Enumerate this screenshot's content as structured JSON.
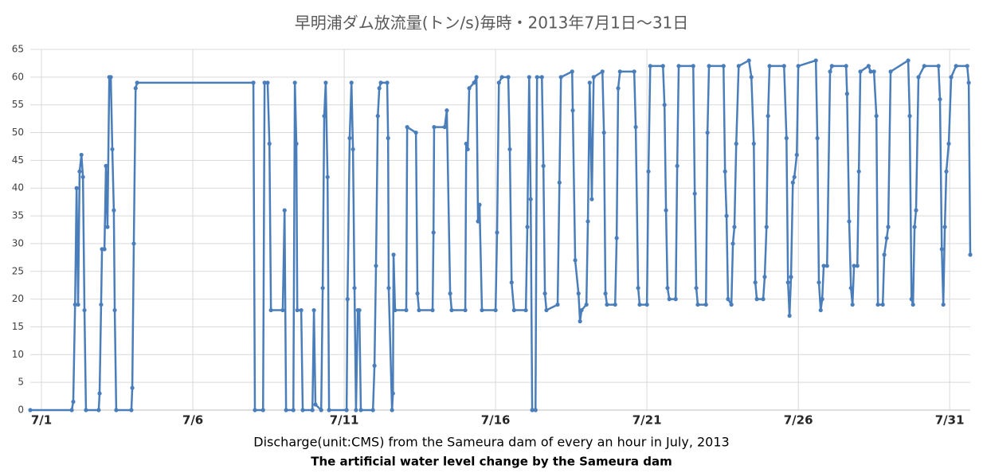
{
  "chart_data": {
    "type": "line",
    "title": "早明浦ダム放流量(トン/s)毎時・2013年7月1日～31日",
    "x_label": "Discharge(unit:CMS) from the Sameura dam of every an hour in July, 2013",
    "caption": "The artificial water level change by the Sameura dam",
    "color": "#4a7ebb",
    "grid": true,
    "markers": true,
    "xlim": [
      0.63,
      31.68
    ],
    "xticks": [
      {
        "value": 1,
        "label": "7/1"
      },
      {
        "value": 6,
        "label": "7/6"
      },
      {
        "value": 11,
        "label": "7/11"
      },
      {
        "value": 16,
        "label": "7/16"
      },
      {
        "value": 21,
        "label": "7/21"
      },
      {
        "value": 26,
        "label": "7/26"
      },
      {
        "value": 31,
        "label": "7/31"
      }
    ],
    "ylim": [
      0,
      65
    ],
    "yticks": [
      0,
      5,
      10,
      15,
      20,
      25,
      30,
      35,
      40,
      45,
      50,
      55,
      60,
      65
    ],
    "x": [
      0.63,
      2.0,
      2.05,
      2.11,
      2.16,
      2.21,
      2.26,
      2.32,
      2.37,
      2.42,
      2.47,
      2.89,
      2.92,
      2.97,
      3.0,
      3.08,
      3.13,
      3.18,
      3.24,
      3.29,
      3.34,
      3.39,
      3.42,
      3.47,
      3.97,
      4.0,
      4.05,
      4.11,
      4.16,
      8.0,
      8.05,
      8.32,
      8.37,
      8.47,
      8.53,
      8.58,
      8.97,
      9.03,
      9.08,
      9.32,
      9.37,
      9.42,
      9.45,
      9.58,
      9.63,
      9.95,
      10.0,
      10.05,
      10.24,
      10.29,
      10.34,
      10.39,
      10.45,
      10.5,
      11.08,
      11.11,
      11.18,
      11.24,
      11.29,
      11.34,
      11.39,
      11.45,
      11.5,
      11.55,
      11.95,
      12.0,
      12.05,
      12.11,
      12.16,
      12.21,
      12.42,
      12.45,
      12.47,
      12.58,
      12.61,
      12.63,
      12.68,
      13.05,
      13.08,
      13.37,
      13.42,
      13.47,
      13.92,
      13.95,
      13.97,
      14.32,
      14.39,
      14.5,
      14.55,
      15.0,
      15.03,
      15.08,
      15.13,
      15.29,
      15.37,
      15.42,
      15.47,
      15.55,
      16.0,
      16.05,
      16.11,
      16.21,
      16.42,
      16.47,
      16.53,
      16.61,
      17.0,
      17.05,
      17.11,
      17.16,
      17.21,
      17.32,
      17.37,
      17.53,
      17.58,
      17.63,
      17.68,
      18.05,
      18.11,
      18.16,
      18.53,
      18.55,
      18.63,
      18.74,
      18.79,
      18.84,
      19.0,
      19.05,
      19.11,
      19.18,
      19.24,
      19.53,
      19.58,
      19.63,
      19.68,
      19.95,
      20.0,
      20.05,
      20.11,
      20.58,
      20.63,
      20.71,
      20.76,
      21.0,
      21.05,
      21.11,
      21.53,
      21.58,
      21.63,
      21.68,
      21.74,
      21.95,
      22.0,
      22.05,
      22.53,
      22.58,
      22.63,
      22.68,
      22.95,
      23.0,
      23.05,
      23.53,
      23.58,
      23.63,
      23.68,
      23.79,
      23.84,
      23.89,
      23.95,
      24.03,
      24.37,
      24.45,
      24.53,
      24.58,
      24.63,
      24.84,
      24.89,
      24.95,
      25.0,
      25.05,
      25.53,
      25.61,
      25.66,
      25.71,
      25.76,
      25.82,
      25.87,
      25.95,
      26.0,
      26.58,
      26.63,
      26.68,
      26.74,
      26.79,
      26.84,
      26.95,
      27.05,
      27.11,
      27.58,
      27.61,
      27.68,
      27.74,
      27.79,
      27.84,
      27.95,
      28.0,
      28.05,
      28.32,
      28.39,
      28.5,
      28.58,
      28.63,
      28.79,
      28.84,
      28.92,
      28.97,
      29.05,
      29.63,
      29.68,
      29.74,
      29.79,
      29.84,
      29.89,
      29.97,
      30.16,
      30.63,
      30.68,
      30.74,
      30.79,
      30.84,
      30.89,
      30.97,
      31.05,
      31.21,
      31.58,
      31.63,
      31.68
    ],
    "values": [
      0,
      0,
      1.5,
      19,
      40,
      19,
      43,
      46,
      42,
      18,
      0,
      0,
      3,
      19,
      29,
      29,
      44,
      33,
      60,
      60,
      47,
      36,
      18,
      0,
      0,
      4,
      30,
      58,
      59,
      59,
      0,
      0,
      59,
      59,
      48,
      18,
      18,
      36,
      0,
      0,
      59,
      48,
      18,
      18,
      0,
      0,
      18,
      1,
      0,
      22,
      53,
      59,
      42,
      0,
      0,
      20,
      49,
      59,
      47,
      22,
      0,
      18,
      18,
      0,
      0,
      8,
      26,
      53,
      58,
      59,
      59,
      49,
      22,
      0,
      3,
      28,
      18,
      18,
      51,
      50,
      21,
      18,
      18,
      32,
      51,
      51,
      54,
      21,
      18,
      18,
      48,
      47,
      58,
      59,
      60,
      34,
      37,
      18,
      18,
      32,
      59,
      60,
      60,
      47,
      23,
      18,
      18,
      33,
      60,
      38,
      0,
      0,
      60,
      60,
      44,
      21,
      18,
      19,
      41,
      60,
      61,
      54,
      27,
      21,
      16,
      18,
      19,
      34,
      59,
      38,
      60,
      61,
      50,
      21,
      19,
      19,
      31,
      58,
      61,
      61,
      51,
      22,
      19,
      19,
      43,
      62,
      62,
      55,
      36,
      22,
      20,
      20,
      44,
      62,
      62,
      39,
      22,
      19,
      19,
      50,
      62,
      62,
      43,
      35,
      20,
      19,
      30,
      33,
      48,
      62,
      63,
      60,
      48,
      23,
      20,
      20,
      24,
      33,
      53,
      62,
      62,
      49,
      23,
      17,
      24,
      41,
      42,
      46,
      62,
      63,
      49,
      23,
      18,
      20,
      26,
      26,
      61,
      62,
      62,
      57,
      34,
      22,
      19,
      26,
      26,
      43,
      61,
      62,
      61,
      61,
      53,
      19,
      19,
      28,
      31,
      33,
      61,
      63,
      53,
      20,
      19,
      33,
      36,
      60,
      62,
      62,
      56,
      29,
      19,
      33,
      43,
      48,
      60,
      62,
      62,
      59,
      28
    ]
  }
}
